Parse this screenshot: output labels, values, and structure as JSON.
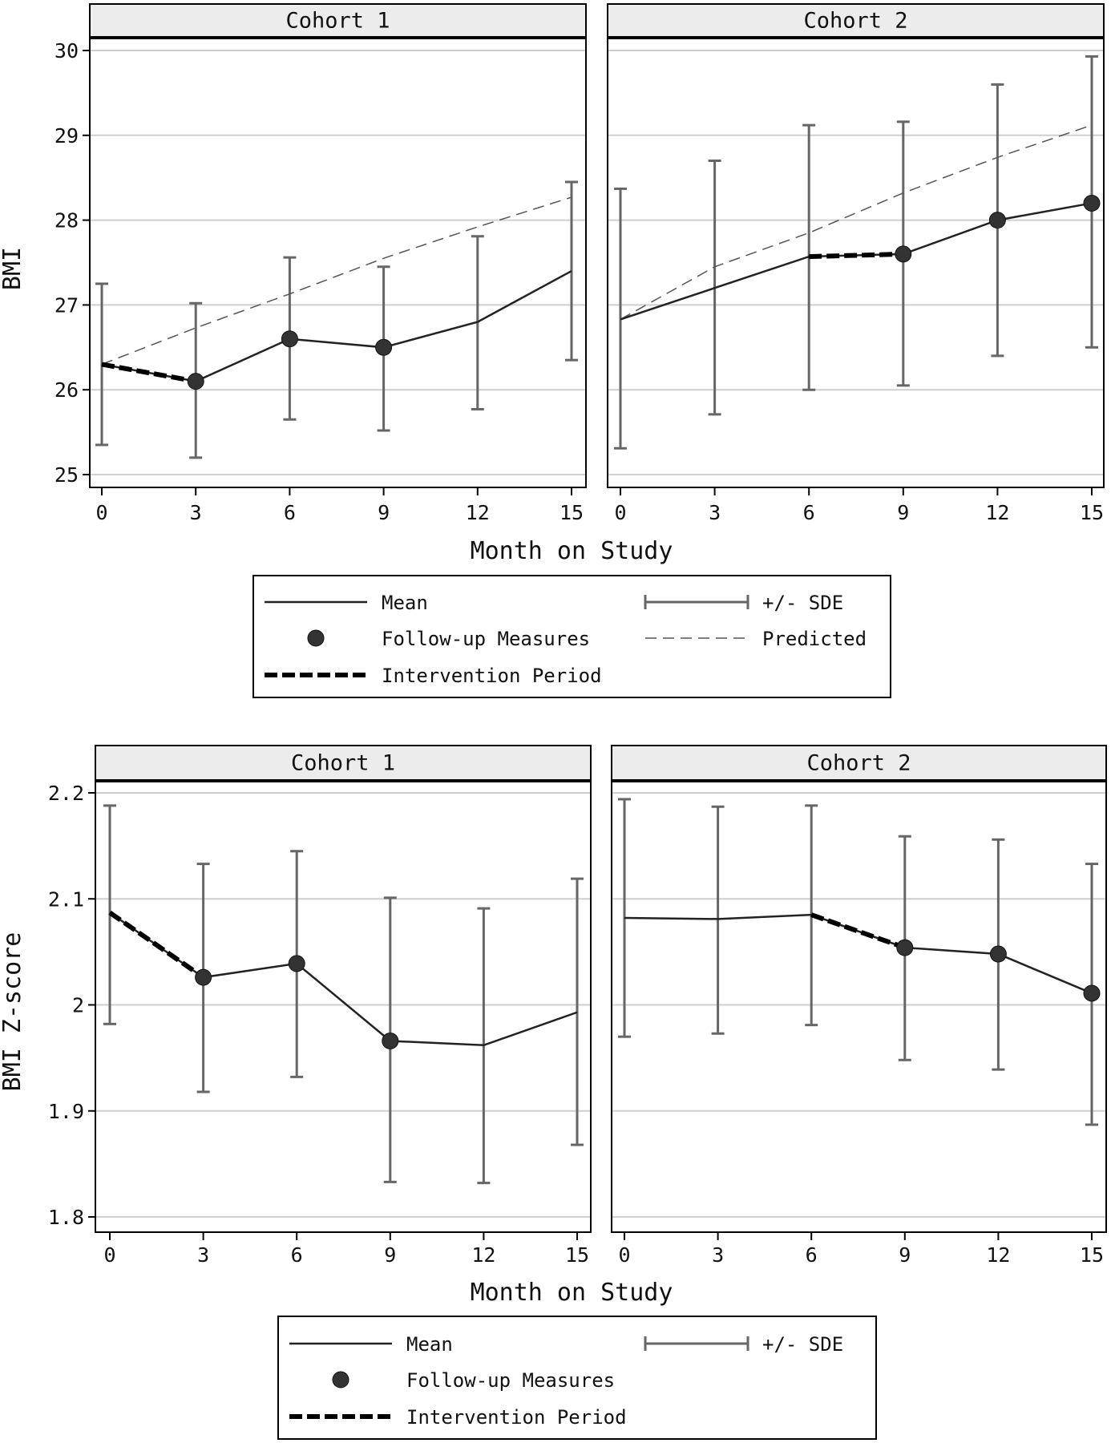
{
  "chart_data": [
    {
      "type": "line",
      "ylabel": "BMI",
      "xlabel": "Month on Study",
      "x": [
        0,
        3,
        6,
        9,
        12,
        15
      ],
      "xticks": [
        "0",
        "3",
        "6",
        "9",
        "12",
        "15"
      ],
      "yticks": [
        "25",
        "26",
        "27",
        "28",
        "29",
        "30"
      ],
      "ylim": [
        24.9,
        30.15
      ],
      "grid": true,
      "panels": [
        {
          "title": "Cohort 1",
          "mean": [
            26.3,
            26.1,
            26.6,
            26.5,
            26.8,
            27.4
          ],
          "lower": [
            25.35,
            25.2,
            25.65,
            25.52,
            25.77,
            26.35
          ],
          "upper": [
            27.25,
            27.02,
            27.56,
            27.45,
            27.81,
            28.45
          ],
          "predicted": [
            26.3,
            26.73,
            27.13,
            27.55,
            27.92,
            28.27
          ],
          "followup_markers": [
            false,
            true,
            true,
            true,
            false,
            false
          ],
          "intervention_period": [
            0,
            3
          ]
        },
        {
          "title": "Cohort 2",
          "mean": [
            26.83,
            27.2,
            27.57,
            27.6,
            28.0,
            28.2
          ],
          "lower": [
            25.31,
            25.71,
            26.0,
            26.05,
            26.4,
            26.5
          ],
          "upper": [
            28.37,
            28.7,
            29.12,
            29.16,
            29.6,
            29.93
          ],
          "predicted": [
            26.83,
            27.45,
            27.85,
            28.32,
            28.74,
            29.12
          ],
          "followup_markers": [
            false,
            false,
            false,
            true,
            true,
            true
          ],
          "intervention_period": [
            6,
            9
          ]
        }
      ],
      "legend": {
        "placement": "bottom",
        "entries": [
          {
            "key": "mean",
            "label": "Mean"
          },
          {
            "key": "sde",
            "label": "+/- SDE"
          },
          {
            "key": "followup",
            "label": "Follow-up Measures"
          },
          {
            "key": "predicted",
            "label": "Predicted"
          },
          {
            "key": "intervention",
            "label": "Intervention Period"
          }
        ]
      }
    },
    {
      "type": "line",
      "ylabel": "BMI Z-score",
      "xlabel": "Month on Study",
      "x": [
        0,
        3,
        6,
        9,
        12,
        15
      ],
      "xticks": [
        "0",
        "3",
        "6",
        "9",
        "12",
        "15"
      ],
      "yticks": [
        "1.8",
        "1.9",
        "2",
        "2.1",
        "2.2"
      ],
      "ylim": [
        1.79,
        2.203
      ],
      "grid": true,
      "panels": [
        {
          "title": "Cohort 1",
          "mean": [
            2.087,
            2.026,
            2.039,
            1.966,
            1.962,
            1.993
          ],
          "lower": [
            1.982,
            1.918,
            1.932,
            1.833,
            1.832,
            1.868
          ],
          "upper": [
            2.188,
            2.133,
            2.145,
            2.101,
            2.091,
            2.119
          ],
          "followup_markers": [
            false,
            true,
            true,
            true,
            false,
            false
          ],
          "intervention_period": [
            0,
            3
          ]
        },
        {
          "title": "Cohort 2",
          "mean": [
            2.082,
            2.081,
            2.085,
            2.054,
            2.048,
            2.011
          ],
          "lower": [
            1.97,
            1.973,
            1.981,
            1.948,
            1.939,
            1.887
          ],
          "upper": [
            2.194,
            2.187,
            2.188,
            2.159,
            2.156,
            2.133
          ],
          "followup_markers": [
            false,
            false,
            false,
            true,
            true,
            true
          ],
          "intervention_period": [
            6,
            9
          ]
        }
      ],
      "legend": {
        "placement": "bottom",
        "entries": [
          {
            "key": "mean",
            "label": "Mean"
          },
          {
            "key": "sde",
            "label": "+/- SDE"
          },
          {
            "key": "followup",
            "label": "Follow-up Measures"
          },
          {
            "key": "intervention",
            "label": "Intervention Period"
          }
        ]
      }
    }
  ]
}
